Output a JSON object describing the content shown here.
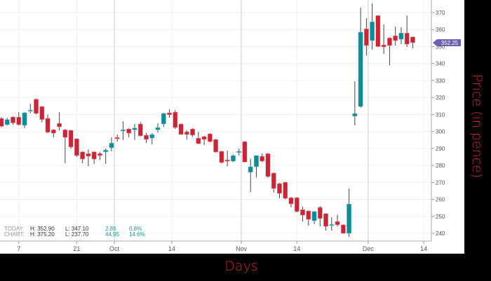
{
  "chart_data": {
    "type": "candlestick",
    "ylabel": "Price (in pence)",
    "xlabel": "Days",
    "ylim": [
      235,
      377
    ],
    "yticks": [
      240,
      250,
      260,
      270,
      280,
      290,
      300,
      310,
      320,
      330,
      340,
      350,
      360,
      370
    ],
    "grid": true,
    "up_color": "#0f8a96",
    "down_color": "#c3283a",
    "last_price": "352.25",
    "last_price_color": "#6a5fb0",
    "xticks": [
      {
        "label": "7",
        "at": 4
      },
      {
        "label": "21",
        "at": 14
      },
      {
        "label": "Oct",
        "at": 20.5,
        "major": true
      },
      {
        "label": "14",
        "at": 30.4
      },
      {
        "label": "Nov",
        "at": 42.4,
        "major": true
      },
      {
        "label": "14",
        "at": 52
      },
      {
        "label": "Dec",
        "at": 64.3,
        "major": true
      },
      {
        "label": "14",
        "at": 73.9
      }
    ],
    "candles": [
      [
        307.7,
        308.5,
        302.5,
        303.0
      ],
      [
        304.0,
        308.0,
        303.5,
        307.0
      ],
      [
        308.5,
        309.0,
        304.0,
        305.0
      ],
      [
        308.5,
        311.5,
        303.5,
        304.0
      ],
      [
        303.6,
        311.5,
        302.0,
        311.0
      ],
      [
        312.0,
        316.4,
        310.7,
        312.6
      ],
      [
        319.0,
        319.5,
        310.0,
        310.6
      ],
      [
        314.7,
        315.0,
        305.5,
        307.0
      ],
      [
        307.7,
        310.0,
        299.0,
        299.5
      ],
      [
        301.0,
        301.5,
        296.5,
        299.0
      ],
      [
        304.8,
        311.4,
        300.7,
        302.7
      ],
      [
        301.0,
        301.5,
        281.3,
        296.5
      ],
      [
        300.7,
        301.0,
        289.8,
        290.8
      ],
      [
        295.7,
        296.0,
        285.0,
        285.8
      ],
      [
        288.0,
        288.5,
        281.3,
        283.7
      ],
      [
        287.0,
        289.5,
        279.6,
        285.4
      ],
      [
        288.0,
        288.5,
        280.9,
        283.7
      ],
      [
        287.0,
        288.0,
        283.3,
        285.8
      ],
      [
        288.0,
        290.0,
        281.0,
        289.0
      ],
      [
        290.4,
        296.5,
        288.3,
        293.2
      ],
      [
        296.5,
        298.2,
        294.0,
        295.7
      ],
      [
        300.3,
        306.0,
        295.0,
        301.0
      ],
      [
        301.5,
        302.0,
        296.5,
        299.0
      ],
      [
        301.0,
        304.4,
        295.0,
        302.0
      ],
      [
        304.4,
        305.6,
        297.0,
        297.4
      ],
      [
        297.8,
        299.1,
        293.2,
        295.3
      ],
      [
        296.1,
        299.0,
        292.4,
        298.2
      ],
      [
        301.0,
        304.8,
        299.4,
        302.3
      ],
      [
        304.4,
        311.0,
        302.7,
        310.6
      ],
      [
        311.0,
        313.1,
        308.0,
        309.8
      ],
      [
        311.4,
        312.6,
        301.5,
        302.3
      ],
      [
        304.4,
        304.8,
        298.0,
        298.2
      ],
      [
        299.8,
        300.7,
        295.3,
        298.2
      ],
      [
        301.5,
        302.0,
        296.8,
        297.8
      ],
      [
        296.1,
        299.8,
        292.5,
        292.8
      ],
      [
        297.0,
        297.5,
        292.0,
        295.3
      ],
      [
        298.6,
        299.0,
        293.5,
        294.0
      ],
      [
        295.3,
        295.7,
        287.5,
        287.9
      ],
      [
        288.3,
        288.7,
        281.0,
        281.7
      ],
      [
        283.3,
        288.7,
        279.6,
        282.5
      ],
      [
        282.5,
        286.5,
        282.0,
        285.8
      ],
      [
        287.6,
        289.9,
        285.8,
        288.3
      ],
      [
        294.0,
        294.5,
        281.7,
        282.0
      ],
      [
        276.0,
        284.0,
        264.3,
        279.2
      ],
      [
        279.2,
        286.0,
        273.0,
        285.8
      ],
      [
        285.4,
        287.0,
        282.0,
        282.5
      ],
      [
        287.0,
        287.3,
        272.8,
        273.4
      ],
      [
        275.5,
        276.0,
        264.0,
        266.4
      ],
      [
        269.3,
        269.7,
        260.6,
        263.5
      ],
      [
        270.1,
        270.5,
        260.0,
        260.6
      ],
      [
        261.0,
        261.4,
        255.3,
        257.3
      ],
      [
        261.0,
        261.4,
        252.4,
        252.8
      ],
      [
        254.0,
        255.7,
        247.0,
        250.7
      ],
      [
        253.2,
        253.6,
        244.5,
        248.2
      ],
      [
        247.4,
        253.2,
        245.4,
        252.8
      ],
      [
        255.3,
        256.1,
        244.1,
        248.7
      ],
      [
        251.6,
        252.0,
        241.6,
        244.1
      ],
      [
        244.8,
        249.5,
        241.6,
        245.2
      ],
      [
        247.0,
        251.0,
        244.1,
        245.0
      ],
      [
        245.0,
        245.4,
        239.8,
        240.0
      ],
      [
        240.0,
        266.4,
        238.0,
        257.3
      ],
      [
        309.0,
        329.5,
        303.6,
        310.6
      ],
      [
        314.7,
        372.9,
        314.0,
        358.5
      ],
      [
        360.5,
        366.7,
        344.8,
        350.6
      ],
      [
        353.5,
        375.4,
        348.2,
        364.6
      ],
      [
        368.3,
        368.5,
        349.8,
        350.0
      ],
      [
        351.0,
        363.0,
        345.7,
        349.8
      ],
      [
        355.1,
        355.5,
        339.0,
        350.6
      ],
      [
        356.4,
        361.7,
        350.6,
        353.5
      ],
      [
        354.3,
        361.3,
        351.4,
        358.0
      ],
      [
        358.0,
        368.3,
        349.8,
        351.4
      ],
      [
        355.7,
        356.0,
        349.0,
        352.25
      ]
    ]
  },
  "summary": {
    "today": {
      "label": "TODAY:",
      "high": "H: 352.90",
      "low": "L: 347.10",
      "change": "2.85",
      "pct": "0.8%"
    },
    "chart": {
      "label": "CHART:",
      "high": "H: 375.20",
      "low": "L: 237.70",
      "change": "44.95",
      "pct": "14.6%"
    }
  }
}
